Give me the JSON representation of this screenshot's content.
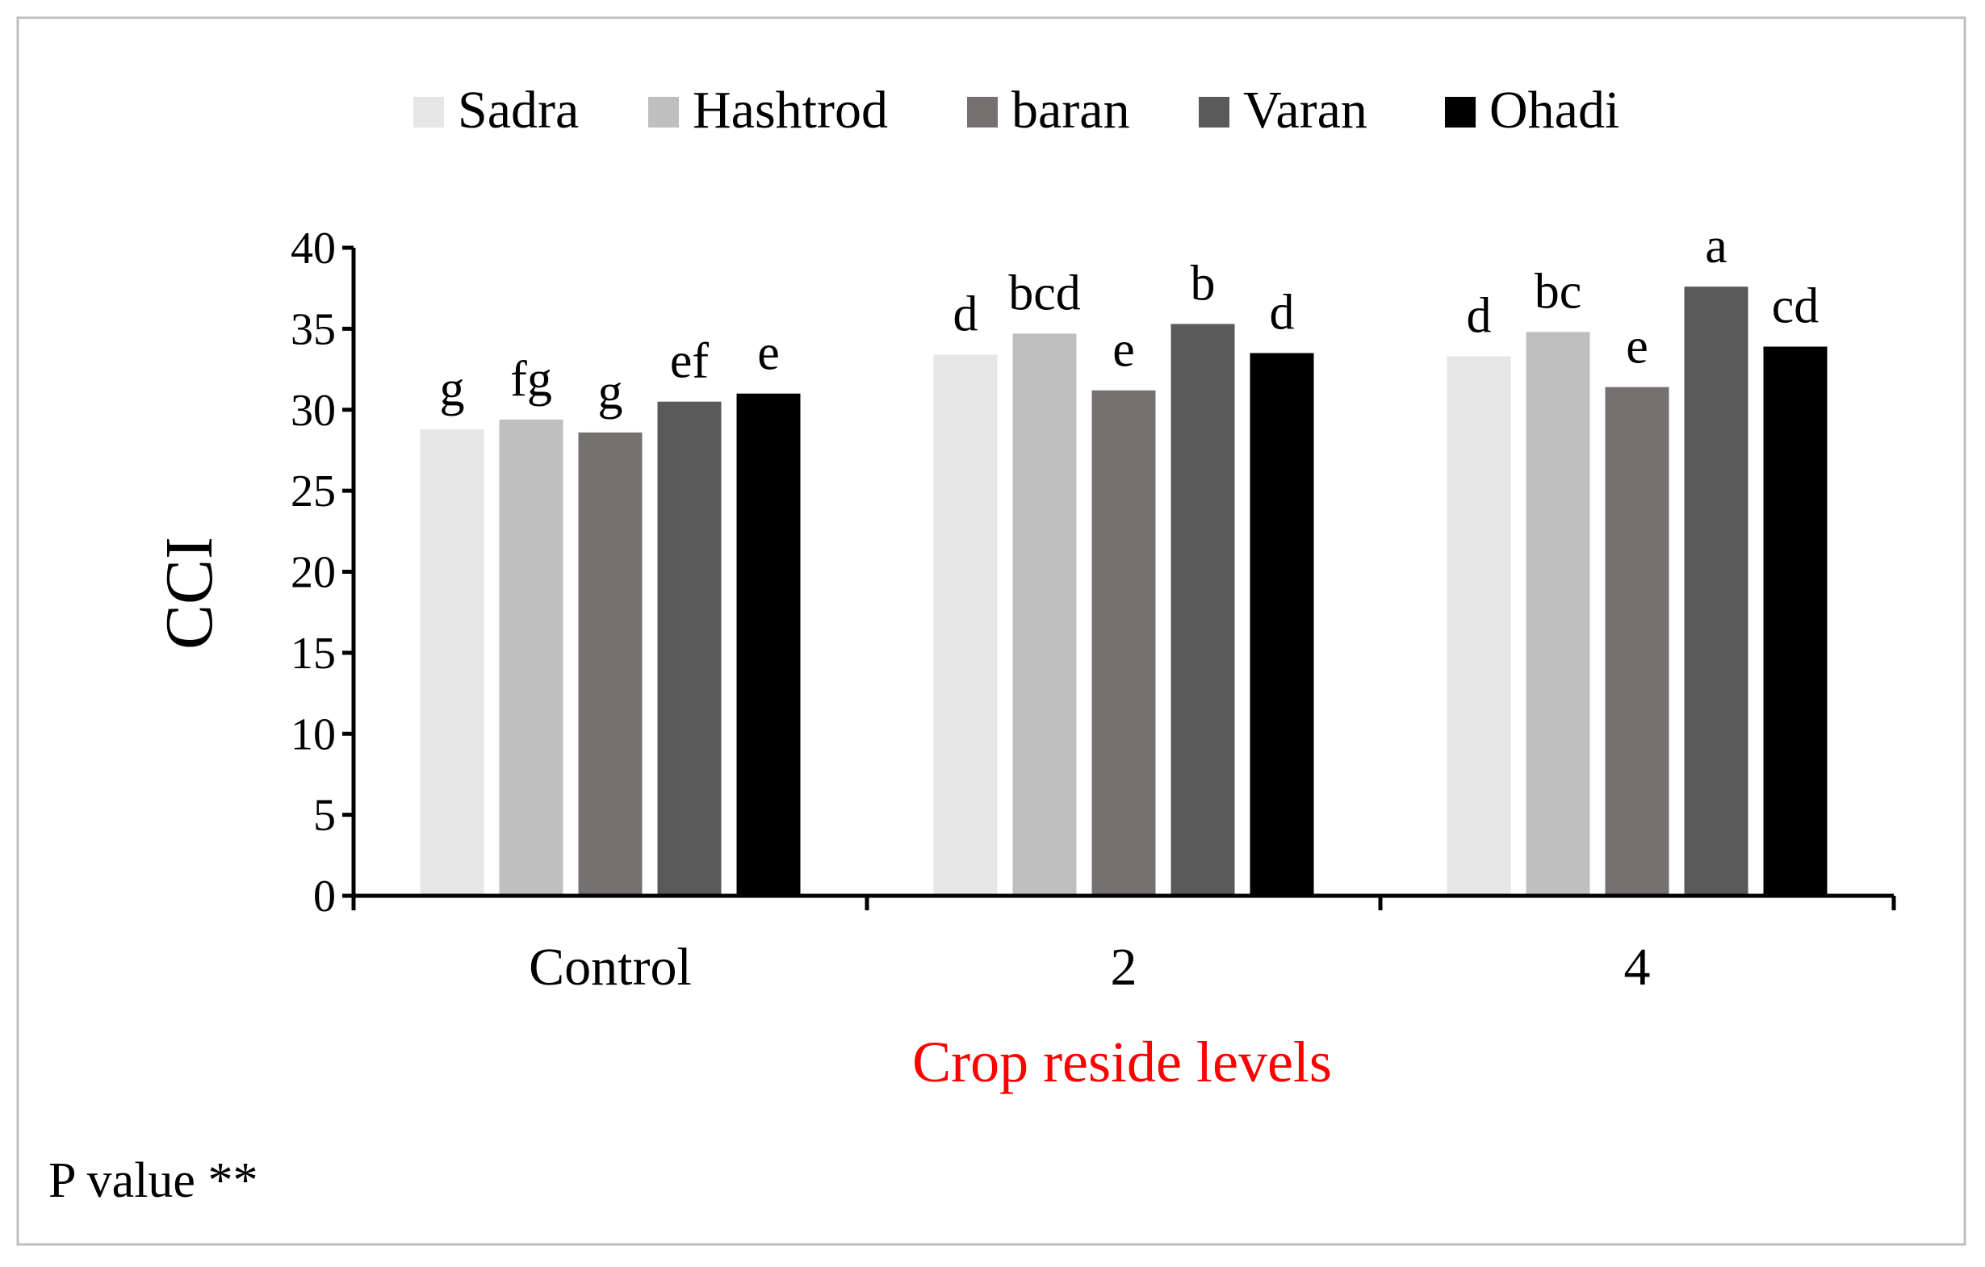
{
  "chart_data": {
    "type": "bar",
    "title": "",
    "xlabel": "Crop reside levels",
    "ylabel": "CCI",
    "ylim": [
      0,
      40
    ],
    "yticks": [
      0,
      5,
      10,
      15,
      20,
      25,
      30,
      35,
      40
    ],
    "categories": [
      "Control",
      "2",
      "4"
    ],
    "series": [
      {
        "name": "Sadra",
        "color": "#e6e6e6",
        "values": [
          28.8,
          33.4,
          33.3
        ],
        "labels": [
          "g",
          "d",
          "d"
        ]
      },
      {
        "name": "Hashtrod",
        "color": "#bfbfbf",
        "values": [
          29.4,
          34.7,
          34.8
        ],
        "labels": [
          "fg",
          "bcd",
          "bc"
        ]
      },
      {
        "name": "baran",
        "color": "#767171",
        "values": [
          28.6,
          31.2,
          31.4
        ],
        "labels": [
          "g",
          "e",
          "e"
        ]
      },
      {
        "name": "Varan",
        "color": "#595959",
        "values": [
          30.5,
          35.3,
          37.6
        ],
        "labels": [
          "ef",
          "b",
          "a"
        ]
      },
      {
        "name": "Ohadi",
        "color": "#000000",
        "values": [
          31.0,
          33.5,
          33.9
        ],
        "labels": [
          "e",
          "d",
          "cd"
        ]
      }
    ],
    "legend_position": "top",
    "grid": false,
    "xlabel_color": "#ff0000"
  },
  "annotation": {
    "p_value_text": "P value **"
  }
}
